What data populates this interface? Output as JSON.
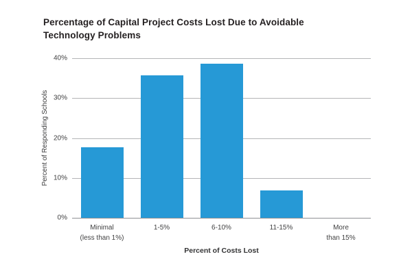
{
  "chart_data": {
    "type": "bar",
    "title": "Percentage of Capital Project Costs Lost Due to Avoidable Technology Problems",
    "xlabel": "Percent of Costs Lost",
    "ylabel": "Percent of Responding Schools",
    "categories": [
      "Minimal (less than 1%)",
      "1-5%",
      "6-10%",
      "11-15%",
      "More than 15%"
    ],
    "category_lines": [
      [
        "Minimal",
        "(less than 1%)"
      ],
      [
        "1-5%"
      ],
      [
        "6-10%"
      ],
      [
        "11-15%"
      ],
      [
        "More",
        "than 15%"
      ]
    ],
    "values": [
      17.7,
      35.7,
      38.6,
      6.9,
      0
    ],
    "ylim": [
      0,
      40
    ],
    "yticks": [
      "0%",
      "10%",
      "20%",
      "30%",
      "40%"
    ],
    "grid": true,
    "legend": "none",
    "bar_color": "#2699d6",
    "gridline_color": "#b3b4b6",
    "baseline_color": "#8f9093"
  }
}
